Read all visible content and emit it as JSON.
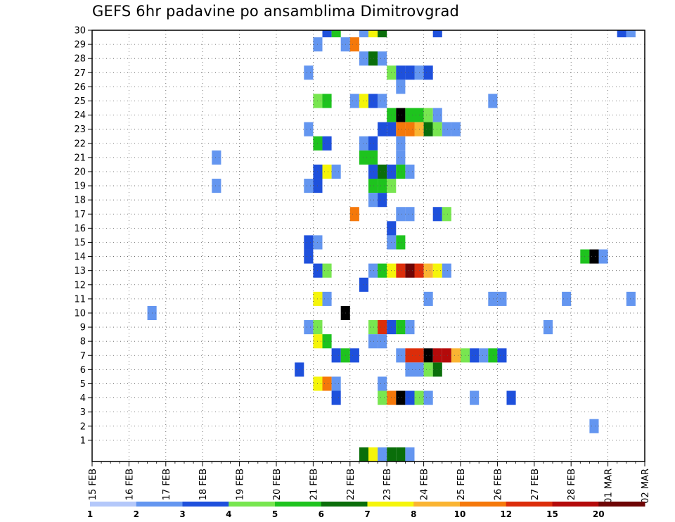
{
  "chart_data": {
    "type": "heatmap",
    "title": "GEFS 6hr padavine po ansamblima Dimitrovgrad",
    "xlabel": "",
    "ylabel": "",
    "x_tick_labels": [
      "15 FEB",
      "16 FEB",
      "17 FEB",
      "18 FEB",
      "19 FEB",
      "20 FEB",
      "21 FEB",
      "22 FEB",
      "23 FEB",
      "24 FEB",
      "25 FEB",
      "26 FEB",
      "27 FEB",
      "28 FEB",
      "01 MAR",
      "02 MAR"
    ],
    "y_tick_labels": [
      "1",
      "2",
      "3",
      "4",
      "5",
      "6",
      "7",
      "8",
      "9",
      "10",
      "11",
      "12",
      "13",
      "14",
      "15",
      "16",
      "17",
      "18",
      "19",
      "20",
      "21",
      "22",
      "23",
      "24",
      "25",
      "26",
      "27",
      "28",
      "29",
      "30"
    ],
    "x_unit": "6-hour step from 15 FEB 00Z",
    "xlim": [
      0,
      60
    ],
    "ylim": [
      0,
      30
    ],
    "grid": true,
    "colorbar": {
      "labels": [
        "1",
        "2",
        "3",
        "4",
        "5",
        "6",
        "7",
        "8",
        "10",
        "12",
        "15",
        "20"
      ],
      "colors": [
        "#b4c8fa",
        "#6496f0",
        "#1e50dc",
        "#78e650",
        "#1ec31e",
        "#0a6e0a",
        "#f5f50a",
        "#fab432",
        "#f5780a",
        "#dc2d0a",
        "#b40a0a",
        "#6e0505"
      ]
    },
    "cells": [
      [
        29,
        30,
        1
      ],
      [
        30,
        30,
        6
      ],
      [
        31,
        30,
        5
      ],
      [
        25,
        30,
        2
      ],
      [
        26,
        30,
        4
      ],
      [
        37,
        30,
        2
      ],
      [
        57,
        30,
        2
      ],
      [
        58,
        30,
        1
      ],
      [
        24,
        29,
        1
      ],
      [
        27,
        29,
        1
      ],
      [
        28,
        29,
        8
      ],
      [
        29,
        28,
        1
      ],
      [
        30,
        28,
        5
      ],
      [
        31,
        28,
        1
      ],
      [
        23,
        27,
        1
      ],
      [
        32,
        27,
        3
      ],
      [
        33,
        27,
        2
      ],
      [
        34,
        27,
        2
      ],
      [
        35,
        27,
        1
      ],
      [
        36,
        27,
        2
      ],
      [
        33,
        26,
        1
      ],
      [
        24,
        25,
        3
      ],
      [
        25,
        25,
        4
      ],
      [
        28,
        25,
        1
      ],
      [
        29,
        25,
        6
      ],
      [
        30,
        25,
        2
      ],
      [
        31,
        25,
        1
      ],
      [
        43,
        25,
        1
      ],
      [
        32,
        24,
        4
      ],
      [
        33,
        24,
        12
      ],
      [
        34,
        24,
        4
      ],
      [
        35,
        24,
        4
      ],
      [
        36,
        24,
        3
      ],
      [
        37,
        24,
        1
      ],
      [
        23,
        23,
        1
      ],
      [
        31,
        23,
        2
      ],
      [
        32,
        23,
        2
      ],
      [
        33,
        23,
        8
      ],
      [
        34,
        23,
        8
      ],
      [
        35,
        23,
        7
      ],
      [
        36,
        23,
        5
      ],
      [
        37,
        23,
        3
      ],
      [
        38,
        23,
        1
      ],
      [
        39,
        23,
        1
      ],
      [
        24,
        22,
        4
      ],
      [
        25,
        22,
        2
      ],
      [
        29,
        22,
        1
      ],
      [
        30,
        22,
        2
      ],
      [
        33,
        22,
        1
      ],
      [
        13,
        21,
        1
      ],
      [
        29,
        21,
        4
      ],
      [
        30,
        21,
        4
      ],
      [
        33,
        21,
        1
      ],
      [
        24,
        20,
        2
      ],
      [
        25,
        20,
        6
      ],
      [
        26,
        20,
        1
      ],
      [
        30,
        20,
        2
      ],
      [
        31,
        20,
        5
      ],
      [
        32,
        20,
        2
      ],
      [
        33,
        20,
        4
      ],
      [
        34,
        20,
        1
      ],
      [
        13,
        19,
        1
      ],
      [
        23,
        19,
        1
      ],
      [
        24,
        19,
        2
      ],
      [
        30,
        19,
        4
      ],
      [
        31,
        19,
        4
      ],
      [
        32,
        19,
        3
      ],
      [
        30,
        18,
        1
      ],
      [
        31,
        18,
        2
      ],
      [
        28,
        17,
        8
      ],
      [
        33,
        17,
        1
      ],
      [
        34,
        17,
        1
      ],
      [
        37,
        17,
        2
      ],
      [
        38,
        17,
        3
      ],
      [
        32,
        16,
        2
      ],
      [
        23,
        15,
        2
      ],
      [
        24,
        15,
        1
      ],
      [
        32,
        15,
        1
      ],
      [
        33,
        15,
        4
      ],
      [
        23,
        14,
        2
      ],
      [
        53,
        14,
        4
      ],
      [
        54,
        14,
        12
      ],
      [
        55,
        14,
        1
      ],
      [
        24,
        13,
        2
      ],
      [
        25,
        13,
        3
      ],
      [
        30,
        13,
        1
      ],
      [
        31,
        13,
        4
      ],
      [
        32,
        13,
        6
      ],
      [
        33,
        13,
        9
      ],
      [
        34,
        13,
        11
      ],
      [
        35,
        13,
        9
      ],
      [
        36,
        13,
        7
      ],
      [
        37,
        13,
        6
      ],
      [
        38,
        13,
        1
      ],
      [
        29,
        12,
        2
      ],
      [
        24,
        11,
        6
      ],
      [
        25,
        11,
        1
      ],
      [
        36,
        11,
        1
      ],
      [
        43,
        11,
        1
      ],
      [
        44,
        11,
        1
      ],
      [
        51,
        11,
        1
      ],
      [
        58,
        11,
        1
      ],
      [
        6,
        10,
        1
      ],
      [
        27,
        10,
        12
      ],
      [
        23,
        9,
        1
      ],
      [
        24,
        9,
        3
      ],
      [
        30,
        9,
        3
      ],
      [
        31,
        9,
        9
      ],
      [
        32,
        9,
        2
      ],
      [
        33,
        9,
        4
      ],
      [
        34,
        9,
        1
      ],
      [
        49,
        9,
        1
      ],
      [
        24,
        8,
        6
      ],
      [
        25,
        8,
        4
      ],
      [
        30,
        8,
        1
      ],
      [
        31,
        8,
        1
      ],
      [
        26,
        7,
        2
      ],
      [
        27,
        7,
        4
      ],
      [
        28,
        7,
        2
      ],
      [
        33,
        7,
        1
      ],
      [
        34,
        7,
        9
      ],
      [
        35,
        7,
        9
      ],
      [
        36,
        7,
        12
      ],
      [
        37,
        7,
        10
      ],
      [
        38,
        7,
        10
      ],
      [
        39,
        7,
        7
      ],
      [
        40,
        7,
        3
      ],
      [
        41,
        7,
        2
      ],
      [
        42,
        7,
        1
      ],
      [
        43,
        7,
        4
      ],
      [
        44,
        7,
        2
      ],
      [
        22,
        6,
        2
      ],
      [
        34,
        6,
        1
      ],
      [
        35,
        6,
        1
      ],
      [
        36,
        6,
        3
      ],
      [
        37,
        6,
        5
      ],
      [
        24,
        5,
        6
      ],
      [
        25,
        5,
        8
      ],
      [
        26,
        5,
        1
      ],
      [
        31,
        5,
        1
      ],
      [
        26,
        4,
        2
      ],
      [
        31,
        4,
        3
      ],
      [
        32,
        4,
        8
      ],
      [
        33,
        4,
        12
      ],
      [
        34,
        4,
        2
      ],
      [
        35,
        4,
        3
      ],
      [
        36,
        4,
        1
      ],
      [
        41,
        4,
        1
      ],
      [
        45,
        4,
        2
      ],
      [
        54,
        2,
        1
      ],
      [
        29,
        0,
        5
      ],
      [
        30,
        0,
        6
      ],
      [
        31,
        0,
        1
      ],
      [
        32,
        0,
        5
      ],
      [
        33,
        0,
        5
      ],
      [
        34,
        0,
        1
      ]
    ]
  }
}
